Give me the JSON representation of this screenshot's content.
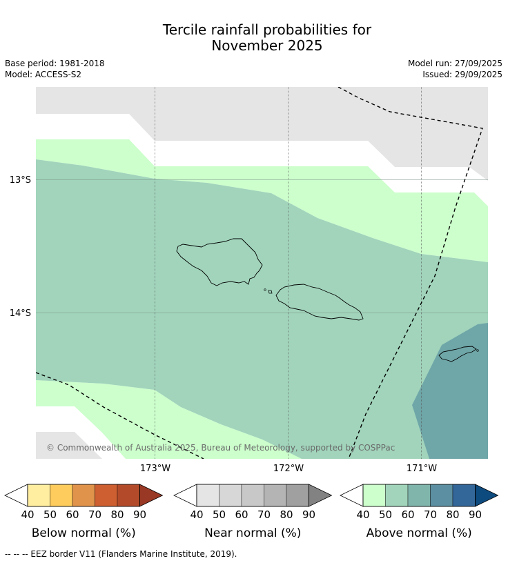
{
  "title_line1": "Tercile rainfall probabilities for",
  "title_line2": "November 2025",
  "meta": {
    "base_period": "Base period: 1981-2018",
    "model": "Model: ACCESS-S2",
    "model_run": "Model run: 27/09/2025",
    "issued": "Issued: 29/09/2025"
  },
  "map": {
    "lat_labels": [
      "13°S",
      "14°S"
    ],
    "lon_labels": [
      "173°W",
      "172°W",
      "171°W"
    ],
    "copyright": "© Commonwealth of Australia 2025, Bureau of Meteorology, supported by COSPPac",
    "region_categories": [
      "Near normal 40-50%",
      "Above normal 40-50%",
      "Above normal 50-60%",
      "Above normal 60-70%"
    ]
  },
  "colorbars": [
    {
      "label": "Below normal (%)",
      "ticks": [
        "40",
        "50",
        "60",
        "70",
        "80",
        "90"
      ],
      "colors": [
        "#ffffff",
        "#ffeda0",
        "#fecc5c",
        "#e0934a",
        "#cd5f31",
        "#b34b2a",
        "#983825"
      ]
    },
    {
      "label": "Near normal (%)",
      "ticks": [
        "40",
        "50",
        "60",
        "70",
        "80",
        "90"
      ],
      "colors": [
        "#ffffff",
        "#e5e5e5",
        "#d7d7d7",
        "#c8c8c8",
        "#b4b4b4",
        "#a0a0a0",
        "#828282"
      ]
    },
    {
      "label": "Above normal (%)",
      "ticks": [
        "40",
        "50",
        "60",
        "70",
        "80",
        "90"
      ],
      "colors": [
        "#ffffff",
        "#ccffcc",
        "#a1d4bb",
        "#80b5ab",
        "#5b8fa1",
        "#336699",
        "#0d4a7e"
      ]
    }
  ],
  "footnote": "--  --  -- EEZ border V11 (Flanders Marine Institute, 2019)."
}
